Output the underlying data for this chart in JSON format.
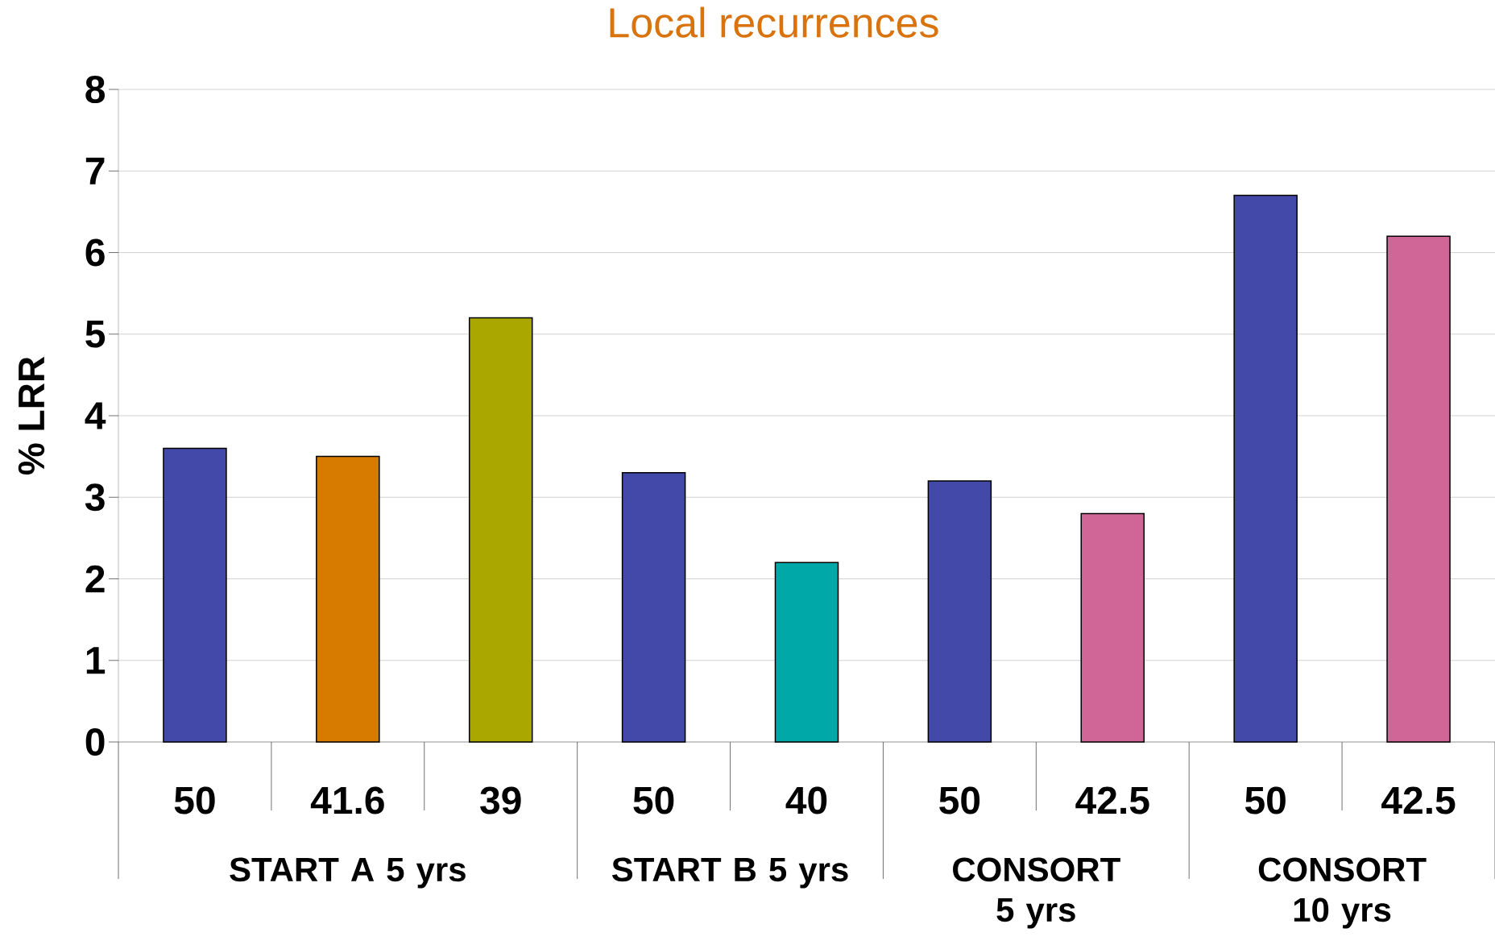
{
  "chart_data": {
    "type": "bar",
    "title": "Local recurrences",
    "ylabel": "% LRR",
    "categories": [
      "50",
      "41.6",
      "39",
      "50",
      "40",
      "50",
      "42.5",
      "50",
      "42.5"
    ],
    "values": [
      3.6,
      3.5,
      5.2,
      3.3,
      2.2,
      3.2,
      2.8,
      6.7,
      6.2
    ],
    "colors": [
      "#4349a8",
      "#d67a00",
      "#aaa800",
      "#4349a8",
      "#00a8a8",
      "#4349a8",
      "#d06598",
      "#4349a8",
      "#d06598"
    ],
    "annotations": [
      "START A 5 yrs",
      "START B 5 yrs",
      "CONSORT 5 yrs",
      "CONSORT 10 yrs"
    ],
    "ylim": [
      0,
      8
    ],
    "yticks": [
      0,
      1,
      2,
      3,
      4,
      5,
      6,
      7,
      8
    ],
    "grid": "y"
  }
}
